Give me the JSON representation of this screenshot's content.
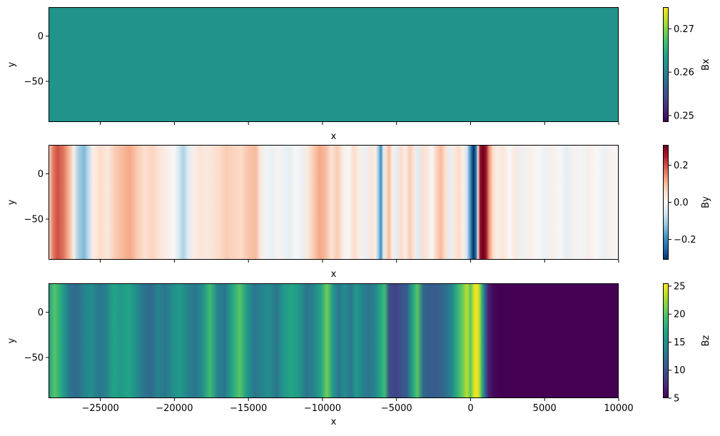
{
  "chart_data": [
    {
      "type": "heatmap",
      "xlabel": "x",
      "ylabel": "y",
      "xlim": [
        -28500,
        10000
      ],
      "ylim": [
        -95,
        32
      ],
      "x_ticks": [
        -25000,
        -20000,
        -15000,
        -10000,
        -5000,
        0,
        5000,
        10000
      ],
      "y_ticks": [
        0,
        -50
      ],
      "y_tick_labels": [
        "0",
        "−50"
      ],
      "show_x_tick_labels": false,
      "colormap": "viridis",
      "colorbar": {
        "label": "Bx",
        "range": [
          0.2485,
          0.275
        ],
        "ticks": [
          0.27,
          0.26,
          0.25
        ],
        "tick_labels": [
          "0.27",
          "0.26",
          "0.25"
        ]
      },
      "profile": [
        [
          -28500,
          0.262
        ],
        [
          10000,
          0.262
        ]
      ]
    },
    {
      "type": "heatmap",
      "xlabel": "x",
      "ylabel": "y",
      "xlim": [
        -28500,
        10000
      ],
      "ylim": [
        -95,
        32
      ],
      "x_ticks": [
        -25000,
        -20000,
        -15000,
        -10000,
        -5000,
        0,
        5000,
        10000
      ],
      "y_ticks": [
        0,
        -50
      ],
      "y_tick_labels": [
        "0",
        "−50"
      ],
      "show_x_tick_labels": false,
      "colormap": "RdBu_r",
      "colorbar": {
        "label": "By",
        "range": [
          -0.31,
          0.31
        ],
        "ticks": [
          0.2,
          0.0,
          -0.2
        ],
        "tick_labels": [
          "0.2",
          "0.0",
          "−0.2"
        ]
      },
      "profile": [
        [
          -28500,
          0.05
        ],
        [
          -28200,
          0.16
        ],
        [
          -27900,
          0.2
        ],
        [
          -27500,
          0.17
        ],
        [
          -27200,
          0.12
        ],
        [
          -26800,
          0.02
        ],
        [
          -26500,
          -0.1
        ],
        [
          -26100,
          -0.14
        ],
        [
          -25800,
          -0.08
        ],
        [
          -25500,
          0.02
        ],
        [
          -25000,
          0.06
        ],
        [
          -24500,
          0.03
        ],
        [
          -24000,
          0.08
        ],
        [
          -23500,
          0.1
        ],
        [
          -23000,
          0.12
        ],
        [
          -22500,
          0.08
        ],
        [
          -22000,
          0.05
        ],
        [
          -21500,
          0.07
        ],
        [
          -21000,
          0.04
        ],
        [
          -20500,
          0.02
        ],
        [
          -20000,
          0.0
        ],
        [
          -19700,
          -0.05
        ],
        [
          -19400,
          -0.1
        ],
        [
          -19100,
          -0.04
        ],
        [
          -18700,
          0.02
        ],
        [
          -18300,
          0.04
        ],
        [
          -17900,
          0.03
        ],
        [
          -17500,
          0.04
        ],
        [
          -17000,
          0.06
        ],
        [
          -16500,
          0.08
        ],
        [
          -16000,
          0.07
        ],
        [
          -15500,
          0.06
        ],
        [
          -15000,
          0.09
        ],
        [
          -14500,
          0.1
        ],
        [
          -14200,
          0.03
        ],
        [
          -13800,
          -0.01
        ],
        [
          -13400,
          -0.02
        ],
        [
          -13000,
          0.01
        ],
        [
          -12600,
          -0.02
        ],
        [
          -12200,
          -0.03
        ],
        [
          -11800,
          0.0
        ],
        [
          -11400,
          -0.02
        ],
        [
          -11000,
          0.03
        ],
        [
          -10600,
          0.08
        ],
        [
          -10200,
          0.12
        ],
        [
          -9800,
          0.1
        ],
        [
          -9400,
          0.04
        ],
        [
          -9000,
          0.08
        ],
        [
          -8600,
          0.02
        ],
        [
          -8200,
          0.0
        ],
        [
          -7900,
          0.06
        ],
        [
          -7500,
          0.02
        ],
        [
          -7100,
          -0.02
        ],
        [
          -6700,
          0.04
        ],
        [
          -6400,
          0.02
        ],
        [
          -6200,
          -0.12
        ],
        [
          -6050,
          -0.2
        ],
        [
          -5900,
          -0.05
        ],
        [
          -5700,
          0.05
        ],
        [
          -5500,
          0.1
        ],
        [
          -5300,
          0.02
        ],
        [
          -5000,
          -0.03
        ],
        [
          -4700,
          0.06
        ],
        [
          -4400,
          0.02
        ],
        [
          -4100,
          0.08
        ],
        [
          -3800,
          0.03
        ],
        [
          -3500,
          -0.04
        ],
        [
          -3200,
          0.05
        ],
        [
          -2900,
          0.03
        ],
        [
          -2600,
          0.0
        ],
        [
          -2300,
          0.07
        ],
        [
          -2000,
          0.1
        ],
        [
          -1700,
          0.05
        ],
        [
          -1400,
          -0.03
        ],
        [
          -1100,
          0.03
        ],
        [
          -800,
          0.06
        ],
        [
          -500,
          0.02
        ],
        [
          -250,
          -0.05
        ],
        [
          0,
          -0.2
        ],
        [
          200,
          -0.31
        ],
        [
          380,
          -0.22
        ],
        [
          500,
          0.05
        ],
        [
          650,
          0.27
        ],
        [
          850,
          0.31
        ],
        [
          1050,
          0.26
        ],
        [
          1250,
          0.14
        ],
        [
          1500,
          0.06
        ],
        [
          1800,
          0.02
        ],
        [
          2200,
          0.04
        ],
        [
          2600,
          0.0
        ],
        [
          3000,
          0.03
        ],
        [
          3500,
          -0.02
        ],
        [
          4000,
          0.02
        ],
        [
          4500,
          0.0
        ],
        [
          5000,
          -0.02
        ],
        [
          5500,
          0.02
        ],
        [
          6000,
          0.0
        ],
        [
          6500,
          -0.03
        ],
        [
          7000,
          0.01
        ],
        [
          7500,
          -0.01
        ],
        [
          8000,
          0.02
        ],
        [
          8500,
          0.0
        ],
        [
          9000,
          -0.02
        ],
        [
          9500,
          0.01
        ],
        [
          10000,
          0.0
        ]
      ]
    },
    {
      "type": "heatmap",
      "xlabel": "x",
      "ylabel": "y",
      "xlim": [
        -28500,
        10000
      ],
      "ylim": [
        -95,
        32
      ],
      "x_ticks": [
        -25000,
        -20000,
        -15000,
        -10000,
        -5000,
        0,
        5000,
        10000
      ],
      "x_tick_labels": [
        "−25000",
        "−20000",
        "−15000",
        "−10000",
        "−5000",
        "0",
        "5000",
        "10000"
      ],
      "y_ticks": [
        0,
        -50
      ],
      "y_tick_labels": [
        "0",
        "−50"
      ],
      "show_x_tick_labels": true,
      "colormap": "viridis",
      "colorbar": {
        "label": "Bz",
        "range": [
          5,
          25.5
        ],
        "ticks": [
          25,
          20,
          15,
          10,
          5
        ],
        "tick_labels": [
          "25",
          "20",
          "15",
          "10",
          "5"
        ]
      },
      "profile": [
        [
          -28500,
          16
        ],
        [
          -28100,
          20
        ],
        [
          -27600,
          17
        ],
        [
          -27100,
          13
        ],
        [
          -26600,
          12
        ],
        [
          -26100,
          14
        ],
        [
          -25600,
          15
        ],
        [
          -25100,
          13
        ],
        [
          -24600,
          14
        ],
        [
          -24100,
          17
        ],
        [
          -23600,
          16
        ],
        [
          -23100,
          17
        ],
        [
          -22600,
          15
        ],
        [
          -22100,
          13
        ],
        [
          -21600,
          12
        ],
        [
          -21100,
          14
        ],
        [
          -20600,
          13
        ],
        [
          -20100,
          15
        ],
        [
          -19600,
          16
        ],
        [
          -19100,
          14
        ],
        [
          -18600,
          13
        ],
        [
          -18100,
          15
        ],
        [
          -17600,
          19
        ],
        [
          -17100,
          14
        ],
        [
          -16600,
          13
        ],
        [
          -16100,
          17
        ],
        [
          -15600,
          20
        ],
        [
          -15100,
          16
        ],
        [
          -14600,
          13
        ],
        [
          -14100,
          14
        ],
        [
          -13600,
          15
        ],
        [
          -13100,
          13
        ],
        [
          -12600,
          16
        ],
        [
          -12100,
          17
        ],
        [
          -11600,
          16
        ],
        [
          -11100,
          13
        ],
        [
          -10600,
          14
        ],
        [
          -10100,
          17
        ],
        [
          -9700,
          21
        ],
        [
          -9300,
          16
        ],
        [
          -8900,
          13
        ],
        [
          -8500,
          15
        ],
        [
          -8100,
          13
        ],
        [
          -7700,
          16
        ],
        [
          -7300,
          14
        ],
        [
          -6900,
          13
        ],
        [
          -6500,
          14
        ],
        [
          -6100,
          17
        ],
        [
          -5800,
          19
        ],
        [
          -5500,
          10
        ],
        [
          -5100,
          9
        ],
        [
          -4700,
          10
        ],
        [
          -4300,
          11
        ],
        [
          -3900,
          17
        ],
        [
          -3600,
          20
        ],
        [
          -3200,
          12
        ],
        [
          -2800,
          11
        ],
        [
          -2300,
          11
        ],
        [
          -1800,
          12
        ],
        [
          -1300,
          14
        ],
        [
          -900,
          18
        ],
        [
          -500,
          21
        ],
        [
          -250,
          23.5
        ],
        [
          0,
          20
        ],
        [
          200,
          24
        ],
        [
          400,
          25.3
        ],
        [
          600,
          23
        ],
        [
          800,
          17
        ],
        [
          1000,
          11
        ],
        [
          1200,
          7
        ],
        [
          1500,
          5.5
        ],
        [
          1900,
          5
        ],
        [
          10000,
          5
        ]
      ]
    }
  ]
}
